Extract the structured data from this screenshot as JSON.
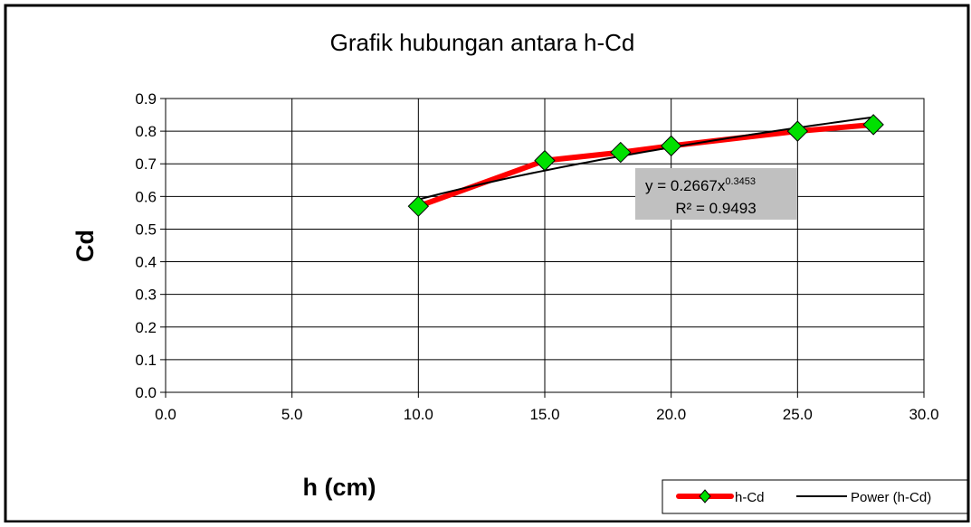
{
  "chart_data": {
    "type": "line",
    "title": "Grafik hubungan antara h-Cd",
    "xlabel": "h (cm)",
    "ylabel": "Cd",
    "xlim": [
      0,
      30
    ],
    "ylim": [
      0,
      0.9
    ],
    "x_ticks": [
      0,
      5,
      10,
      15,
      20,
      25,
      30
    ],
    "x_tick_labels": [
      "0.0",
      "5.0",
      "10.0",
      "15.0",
      "20.0",
      "25.0",
      "30.0"
    ],
    "y_ticks": [
      0,
      0.1,
      0.2,
      0.3,
      0.4,
      0.5,
      0.6,
      0.7,
      0.8,
      0.9
    ],
    "y_tick_labels": [
      "0.0",
      "0.1",
      "0.2",
      "0.3",
      "0.4",
      "0.5",
      "0.6",
      "0.7",
      "0.8",
      "0.9"
    ],
    "grid": true,
    "legend_position": "bottom-right",
    "series": [
      {
        "name": "h-Cd",
        "x": [
          10,
          15,
          18,
          20,
          25,
          28
        ],
        "values": [
          0.57,
          0.71,
          0.735,
          0.755,
          0.8,
          0.82
        ],
        "line_color": "#ff0000",
        "marker_color": "#00e000",
        "marker": "diamond"
      },
      {
        "name": "Power (h-Cd)",
        "trendline": "power",
        "coefficient": 0.2667,
        "exponent": 0.3453,
        "x_range": [
          10,
          28
        ],
        "line_color": "#000000"
      }
    ],
    "annotation": {
      "equation_prefix": "y = 0.2667x",
      "equation_exponent": "0.3453",
      "r_squared": "R² = 0.9493",
      "background_color": "#c0c0c0"
    }
  }
}
